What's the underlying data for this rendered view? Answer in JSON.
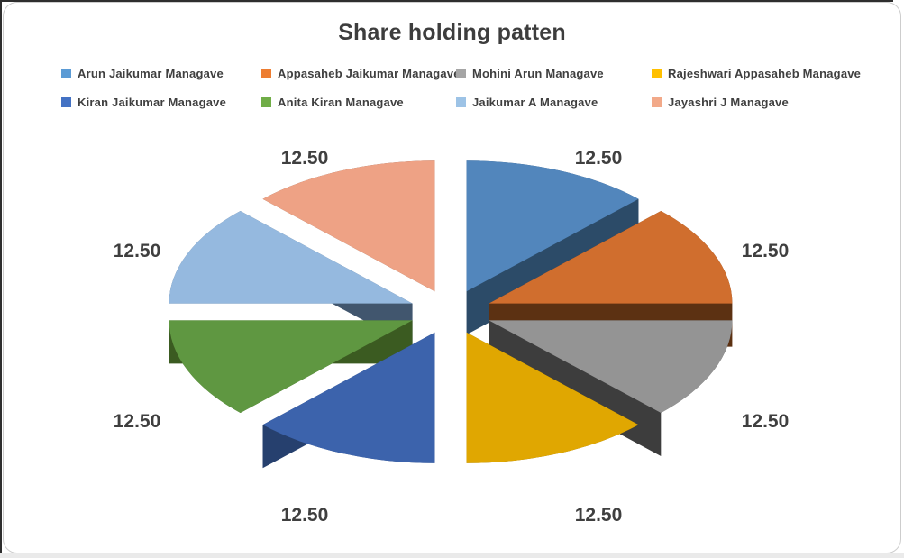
{
  "chart_data": {
    "type": "pie",
    "style": "3d-exploded",
    "title": "Share holding patten",
    "legend_position": "top",
    "value_format": "two-decimal",
    "total": 100,
    "series": [
      {
        "name": "Arun Jaikumar Managave",
        "value": 12.5,
        "label": "12.50",
        "legend_color": "#5B9BD5",
        "top_color": "#5286BC",
        "side_color": "#2C4B68"
      },
      {
        "name": "Appasaheb Jaikumar Managave",
        "value": 12.5,
        "label": "12.50",
        "legend_color": "#ED7D31",
        "top_color": "#D06E2E",
        "side_color": "#5C3112"
      },
      {
        "name": "Mohini Arun Managave",
        "value": 12.5,
        "label": "12.50",
        "legend_color": "#A5A5A5",
        "top_color": "#949494",
        "side_color": "#3D3D3D"
      },
      {
        "name": "Rajeshwari Appasaheb Managave",
        "value": 12.5,
        "label": "12.50",
        "legend_color": "#FFC000",
        "top_color": "#E0A701",
        "side_color": "#6E5300"
      },
      {
        "name": "Kiran Jaikumar Managave",
        "value": 12.5,
        "label": "12.50",
        "legend_color": "#4472C4",
        "top_color": "#3C63AC",
        "side_color": "#26406E"
      },
      {
        "name": "Anita Kiran Managave",
        "value": 12.5,
        "label": "12.50",
        "legend_color": "#70AD47",
        "top_color": "#5F9741",
        "side_color": "#3B5B21"
      },
      {
        "name": "Jaikumar A Managave",
        "value": 12.5,
        "label": "12.50",
        "legend_color": "#9DC3E6",
        "top_color": "#95B9DF",
        "side_color": "#41566E"
      },
      {
        "name": "Jayashri J Managave",
        "value": 12.5,
        "label": "12.50",
        "legend_color": "#F2A989",
        "top_color": "#EEA285",
        "side_color": "#653C2B"
      }
    ]
  }
}
